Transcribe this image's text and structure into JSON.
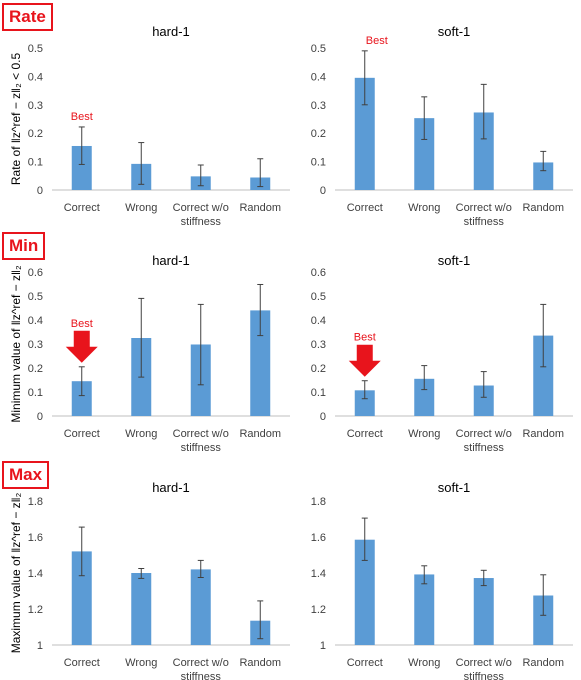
{
  "sections": [
    {
      "tag": "Rate",
      "ylabel": "Rate of ‖z^ref − z‖₂ < 0.5"
    },
    {
      "tag": "Min",
      "ylabel": "Minimum value of ‖z^ref − z‖₂"
    },
    {
      "tag": "Max",
      "ylabel": "Maximum value of ‖z^ref − z‖₂"
    }
  ],
  "colors": {
    "bar": "#5b9bd5",
    "error": "#404040",
    "highlight": "#e8141c",
    "tag": "#e8141c"
  },
  "chart_data": [
    {
      "type": "bar",
      "title": "hard-1",
      "categories": [
        "Correct",
        "Wrong",
        "Correct w/o stiffness",
        "Random"
      ],
      "values": [
        0.155,
        0.092,
        0.048,
        0.044
      ],
      "err_low": [
        0.09,
        0.02,
        0.015,
        0.012
      ],
      "err_high": [
        0.222,
        0.167,
        0.088,
        0.11
      ],
      "ylim": [
        0,
        0.5
      ],
      "yticks": [
        "0",
        "0.1",
        "0.2",
        "0.3",
        "0.4",
        "0.5"
      ],
      "annotation": "Best",
      "annotation_index": 0,
      "arrow": false
    },
    {
      "type": "bar",
      "title": "soft-1",
      "categories": [
        "Correct",
        "Wrong",
        "Correct w/o stiffness",
        "Random"
      ],
      "values": [
        0.395,
        0.253,
        0.273,
        0.097
      ],
      "err_low": [
        0.3,
        0.178,
        0.18,
        0.068
      ],
      "err_high": [
        0.49,
        0.328,
        0.372,
        0.136
      ],
      "ylim": [
        0,
        0.5
      ],
      "yticks": [
        "0",
        "0.1",
        "0.2",
        "0.3",
        "0.4",
        "0.5"
      ],
      "annotation": "Best",
      "annotation_index": 0,
      "arrow": false
    },
    {
      "type": "bar",
      "title": "hard-1",
      "categories": [
        "Correct",
        "Wrong",
        "Correct w/o stiffness",
        "Random"
      ],
      "values": [
        0.145,
        0.325,
        0.298,
        0.44
      ],
      "err_low": [
        0.085,
        0.162,
        0.13,
        0.335
      ],
      "err_high": [
        0.205,
        0.49,
        0.465,
        0.548
      ],
      "ylim": [
        0,
        0.6
      ],
      "yticks": [
        "0",
        "0.1",
        "0.2",
        "0.3",
        "0.4",
        "0.5",
        "0.6"
      ],
      "annotation": "Best",
      "annotation_index": 0,
      "arrow": true
    },
    {
      "type": "bar",
      "title": "soft-1",
      "categories": [
        "Correct",
        "Wrong",
        "Correct w/o stiffness",
        "Random"
      ],
      "values": [
        0.107,
        0.155,
        0.127,
        0.335
      ],
      "err_low": [
        0.072,
        0.11,
        0.078,
        0.205
      ],
      "err_high": [
        0.147,
        0.21,
        0.185,
        0.465
      ],
      "ylim": [
        0,
        0.6
      ],
      "yticks": [
        "0",
        "0.1",
        "0.2",
        "0.3",
        "0.4",
        "0.5",
        "0.6"
      ],
      "annotation": "Best",
      "annotation_index": 0,
      "arrow": true
    },
    {
      "type": "bar",
      "title": "hard-1",
      "categories": [
        "Correct",
        "Wrong",
        "Correct w/o stiffness",
        "Random"
      ],
      "values": [
        1.52,
        1.4,
        1.42,
        1.135
      ],
      "err_low": [
        1.385,
        1.37,
        1.375,
        1.035
      ],
      "err_high": [
        1.655,
        1.425,
        1.47,
        1.245
      ],
      "ylim": [
        1,
        1.8
      ],
      "yticks": [
        "1",
        "1.2",
        "1.4",
        "1.6",
        "1.8"
      ],
      "annotation": "",
      "arrow": false
    },
    {
      "type": "bar",
      "title": "soft-1",
      "categories": [
        "Correct",
        "Wrong",
        "Correct w/o stiffness",
        "Random"
      ],
      "values": [
        1.585,
        1.392,
        1.372,
        1.275
      ],
      "err_low": [
        1.47,
        1.34,
        1.33,
        1.165
      ],
      "err_high": [
        1.705,
        1.44,
        1.415,
        1.39
      ],
      "ylim": [
        1,
        1.8
      ],
      "yticks": [
        "1",
        "1.2",
        "1.4",
        "1.6",
        "1.8"
      ],
      "annotation": "",
      "arrow": false
    }
  ]
}
